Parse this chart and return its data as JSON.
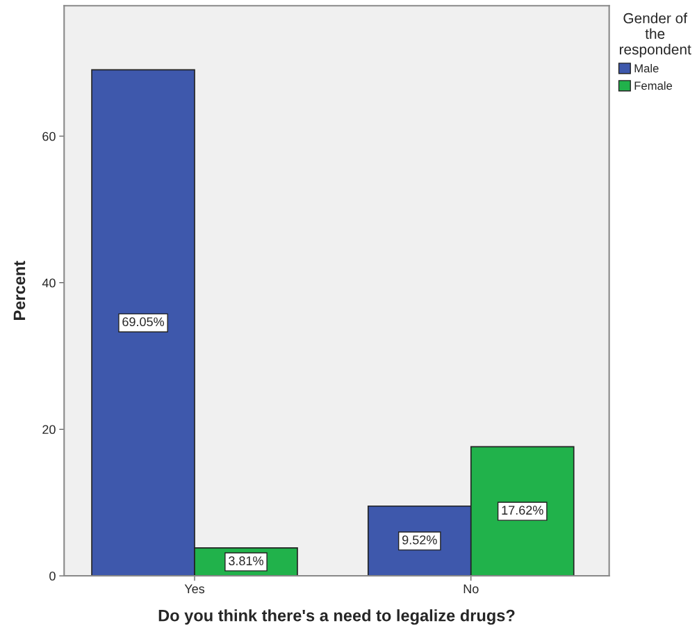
{
  "chart_data": {
    "type": "bar",
    "xlabel": "Do you think there's a need to legalize drugs?",
    "ylabel": "Percent",
    "legend_title": "Gender of\nthe\nrespondent",
    "categories": [
      "Yes",
      "No"
    ],
    "series": [
      {
        "name": "Male",
        "color": "#3e58ac",
        "values": [
          69.05,
          9.52
        ],
        "value_labels": [
          "69.05%",
          "9.52%"
        ]
      },
      {
        "name": "Female",
        "color": "#21b24b",
        "values": [
          3.81,
          17.62
        ],
        "value_labels": [
          "3.81%",
          "17.62%"
        ]
      }
    ],
    "ylim": [
      0,
      77.8
    ],
    "yticks": [
      0,
      20,
      40,
      60
    ],
    "grid": false,
    "legend": "right"
  }
}
